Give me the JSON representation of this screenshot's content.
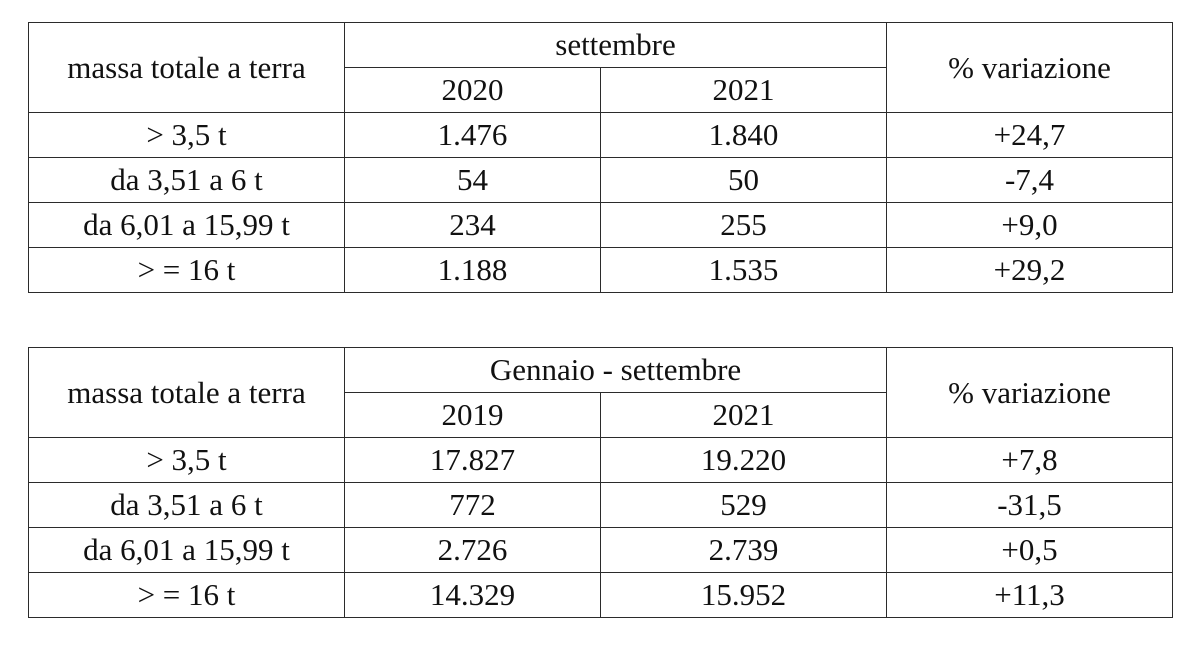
{
  "tables": [
    {
      "header": {
        "col1": "massa totale a terra",
        "period": "settembre",
        "year_a": "2020",
        "year_b": "2021",
        "change": "% variazione"
      },
      "rows": [
        {
          "label": "> 3,5 t",
          "a": "1.476",
          "b": "1.840",
          "change": "+24,7"
        },
        {
          "label": "da 3,51 a 6 t",
          "a": "54",
          "b": "50",
          "change": "-7,4"
        },
        {
          "label": "da 6,01 a 15,99 t",
          "a": "234",
          "b": "255",
          "change": "+9,0"
        },
        {
          "label": "> = 16 t",
          "a": "1.188",
          "b": "1.535",
          "change": "+29,2"
        }
      ]
    },
    {
      "header": {
        "col1": "massa totale a terra",
        "period": "Gennaio - settembre",
        "year_a": "2019",
        "year_b": "2021",
        "change": "% variazione"
      },
      "rows": [
        {
          "label": "> 3,5 t",
          "a": "17.827",
          "b": "19.220",
          "change": "+7,8"
        },
        {
          "label": "da 3,51 a 6 t",
          "a": "772",
          "b": "529",
          "change": "-31,5"
        },
        {
          "label": "da 6,01 a 15,99 t",
          "a": "2.726",
          "b": "2.739",
          "change": "+0,5"
        },
        {
          "label": "> = 16 t",
          "a": "14.329",
          "b": "15.952",
          "change": "+11,3"
        }
      ]
    }
  ]
}
